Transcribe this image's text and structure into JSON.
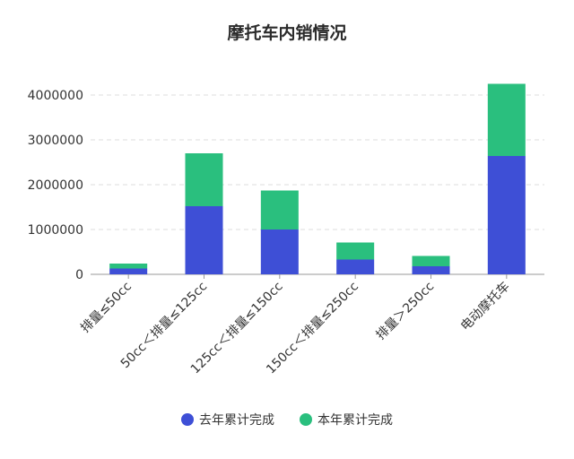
{
  "chart_data": {
    "type": "bar",
    "stacked": true,
    "title": "摩托车内销情况",
    "xlabel": "",
    "ylabel": "",
    "categories": [
      "排量≤50cc",
      "50cc＜排量≤125cc",
      "125cc＜排量≤150cc",
      "150cc＜排量≤250cc",
      "排量＞250cc",
      "电动摩托车"
    ],
    "series": [
      {
        "name": "去年累计完成",
        "color": "#3e4fd6",
        "values": [
          130000,
          1520000,
          1000000,
          330000,
          180000,
          2640000
        ]
      },
      {
        "name": "本年累计完成",
        "color": "#2abf7e",
        "values": [
          110000,
          1180000,
          870000,
          380000,
          230000,
          1610000
        ]
      }
    ],
    "ylim": [
      0,
      4000000
    ],
    "yticks": [
      0,
      1000000,
      2000000,
      3000000,
      4000000
    ],
    "ytick_labels": [
      "0",
      "1000000",
      "2000000",
      "3000000",
      "4000000"
    ],
    "grid": true,
    "legend_position": "bottom"
  }
}
